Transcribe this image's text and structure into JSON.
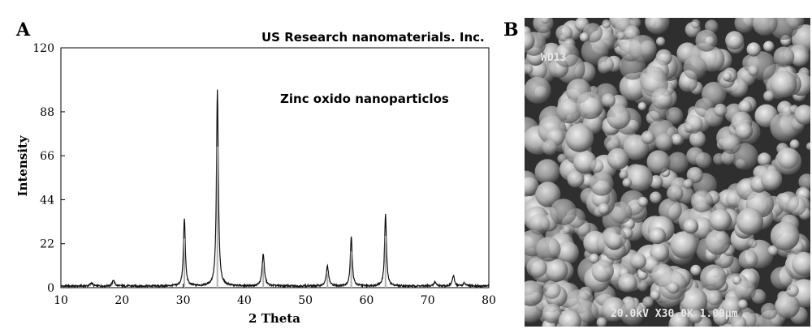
{
  "panels": {
    "left_letter": "A",
    "right_letter": "B"
  },
  "chart_data": {
    "type": "line",
    "xlabel": "2 Theta",
    "ylabel": "Intensity",
    "xlim": [
      10,
      80
    ],
    "ylim": [
      0,
      120
    ],
    "x_ticks": [
      10,
      20,
      30,
      40,
      50,
      60,
      70,
      80
    ],
    "y_ticks": [
      0,
      22,
      44,
      66,
      88,
      120
    ],
    "grid": false,
    "annotations": [
      {
        "text": "US Research nanomaterials. Inc.",
        "x": 57,
        "y": 115
      },
      {
        "text": "Zinc oxido nanoparticlos",
        "x": 53,
        "y": 94
      }
    ],
    "peaks": [
      {
        "x": 15.0,
        "y": 1.5
      },
      {
        "x": 18.6,
        "y": 3
      },
      {
        "x": 30.2,
        "y": 34
      },
      {
        "x": 35.6,
        "y": 98
      },
      {
        "x": 43.1,
        "y": 16
      },
      {
        "x": 53.6,
        "y": 10
      },
      {
        "x": 57.5,
        "y": 25
      },
      {
        "x": 63.1,
        "y": 36
      },
      {
        "x": 71.2,
        "y": 2
      },
      {
        "x": 74.2,
        "y": 5
      },
      {
        "x": 76.0,
        "y": 1.5
      }
    ],
    "baseline": 0.8,
    "colors": {
      "line": "#111111",
      "highlight": "#b0b0b0"
    }
  },
  "sem_image": {
    "label_top": "WD13",
    "label_bottom": "20.0kV X30.0K 1.00μm"
  }
}
